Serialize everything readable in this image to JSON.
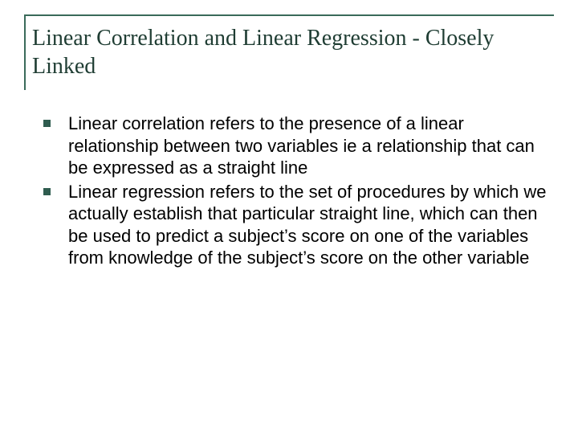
{
  "title": "Linear Correlation and Linear Regression - Closely Linked",
  "bullets": [
    "Linear correlation refers to the presence of a linear relationship between two variables ie a relationship that can be expressed as a straight line",
    "Linear regression refers to the set of procedures  by which we actually establish that particular straight line, which can then be used to predict a subject’s score on one of the variables from knowledge of the subject’s score on the other variable"
  ],
  "colors": {
    "title_border": "#3a6a5a",
    "title_text": "#1f3d33",
    "bullet_marker": "#2f5c4f",
    "body_text": "#000000",
    "background": "#ffffff"
  },
  "fonts": {
    "title_family": "Times New Roman",
    "title_size_pt": 28,
    "body_family": "Arial",
    "body_size_pt": 22
  }
}
